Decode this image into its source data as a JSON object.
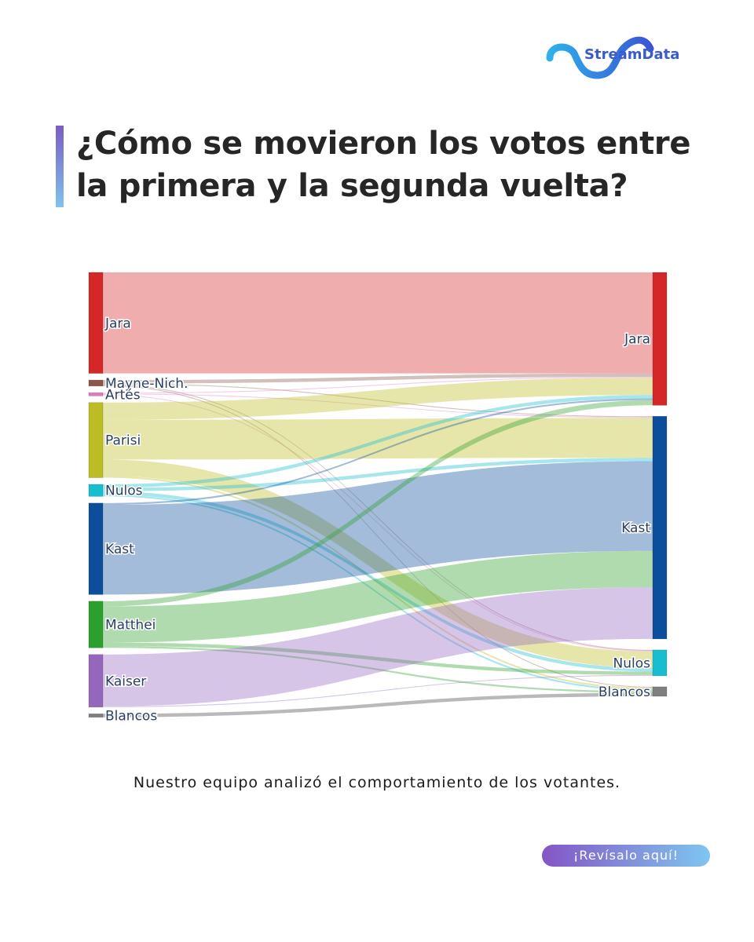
{
  "brand": {
    "name": "StreamData",
    "color": "#3a5bd0",
    "accent": "#2f9be8"
  },
  "header": {
    "title_line1": "¿Cómo se movieron los votos entre",
    "title_line2": "la primera y la segunda vuelta?"
  },
  "subtitle": "Nuestro equipo analizó el comportamiento de los votantes.",
  "cta": {
    "label": "¡Revísalo aquí!"
  },
  "chart_data": {
    "type": "sankey",
    "title": "",
    "nodes_first_round": [
      {
        "name": "Jara",
        "color": "#d62728"
      },
      {
        "name": "Mayne-Nich.",
        "color": "#8c564b"
      },
      {
        "name": "Artés",
        "color": "#e377c2"
      },
      {
        "name": "Parisi",
        "color": "#bcbd22"
      },
      {
        "name": "Nulos",
        "color": "#17becf"
      },
      {
        "name": "Kast",
        "color": "#0b4f9c"
      },
      {
        "name": "Matthei",
        "color": "#2ca02c"
      },
      {
        "name": "Kaiser",
        "color": "#9467bd"
      },
      {
        "name": "Blancos",
        "color": "#7f7f7f"
      }
    ],
    "nodes_second_round": [
      {
        "name": "Jara",
        "color": "#d62728"
      },
      {
        "name": "Kast",
        "color": "#0b4f9c"
      },
      {
        "name": "Nulos",
        "color": "#17becf"
      },
      {
        "name": "Blancos",
        "color": "#7f7f7f"
      }
    ],
    "links": [
      {
        "source": "Jara",
        "target": "Jara",
        "value": 117
      },
      {
        "source": "Mayne-Nich.",
        "target": "Jara",
        "value": 4
      },
      {
        "source": "Mayne-Nich.",
        "target": "Kast",
        "value": 1
      },
      {
        "source": "Mayne-Nich.",
        "target": "Nulos",
        "value": 1
      },
      {
        "source": "Mayne-Nich.",
        "target": "Blancos",
        "value": 1
      },
      {
        "source": "Artés",
        "target": "Jara",
        "value": 1
      },
      {
        "source": "Artés",
        "target": "Kast",
        "value": 1
      },
      {
        "source": "Artés",
        "target": "Nulos",
        "value": 1
      },
      {
        "source": "Parisi",
        "target": "Jara",
        "value": 20
      },
      {
        "source": "Parisi",
        "target": "Kast",
        "value": 46
      },
      {
        "source": "Parisi",
        "target": "Nulos",
        "value": 19
      },
      {
        "source": "Parisi",
        "target": "Blancos",
        "value": 2
      },
      {
        "source": "Nulos",
        "target": "Jara",
        "value": 4
      },
      {
        "source": "Nulos",
        "target": "Kast",
        "value": 4
      },
      {
        "source": "Nulos",
        "target": "Nulos",
        "value": 4
      },
      {
        "source": "Nulos",
        "target": "Blancos",
        "value": 2
      },
      {
        "source": "Kast",
        "target": "Jara",
        "value": 2
      },
      {
        "source": "Kast",
        "target": "Kast",
        "value": 104
      },
      {
        "source": "Matthei",
        "target": "Jara",
        "value": 6
      },
      {
        "source": "Matthei",
        "target": "Kast",
        "value": 42
      },
      {
        "source": "Matthei",
        "target": "Nulos",
        "value": 4
      },
      {
        "source": "Matthei",
        "target": "Blancos",
        "value": 2
      },
      {
        "source": "Kaiser",
        "target": "Kast",
        "value": 60
      },
      {
        "source": "Kaiser",
        "target": "Nulos",
        "value": 1
      },
      {
        "source": "Blancos",
        "target": "Blancos",
        "value": 4
      }
    ]
  }
}
